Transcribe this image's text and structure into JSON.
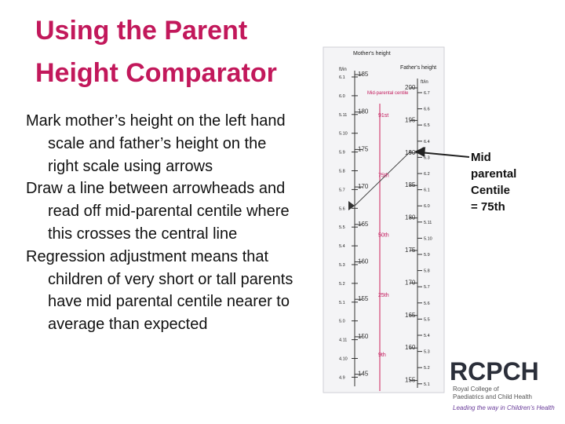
{
  "title": [
    "Using the Parent",
    "Height Comparator"
  ],
  "bullets": [
    "Mark mother’s height on the left hand scale and father’s height on the right scale using arrows",
    "Draw a line between arrowheads and read off mid-parental centile where this crosses the central line",
    "Regression adjustment means that children of very short or tall parents have mid parental centile nearer to average than expected"
  ],
  "comparator": {
    "mother_header": "Mother's height",
    "father_header": "Father's height",
    "mother_unit": "ft/in",
    "father_unit": "ft/in",
    "centile_header": "Mid-parental centile",
    "mother_ftin": [
      "6.1",
      "6.0",
      "5.11",
      "5.10",
      "5.9",
      "5.8",
      "5.7",
      "5.6",
      "5.5",
      "5.4",
      "5.3",
      "5.2",
      "5.1",
      "5.0",
      "4.11",
      "4.10",
      "4.9"
    ],
    "mother_cm": [
      "185",
      "180",
      "175",
      "170",
      "165",
      "160",
      "155",
      "150",
      "145"
    ],
    "father_cm": [
      "200",
      "195",
      "190",
      "185",
      "180",
      "175",
      "170",
      "165",
      "160",
      "155"
    ],
    "father_ftin": [
      "6.7",
      "6.6",
      "6.5",
      "6.4",
      "6.3",
      "6.2",
      "6.1",
      "6.0",
      "5.11",
      "5.10",
      "5.9",
      "5.8",
      "5.7",
      "5.6",
      "5.5",
      "5.4",
      "5.3",
      "5.2",
      "5.1"
    ],
    "centiles": [
      "91st",
      "75th",
      "50th",
      "25th",
      "9th"
    ]
  },
  "callout": [
    "Mid",
    "parental",
    "Centile",
    "= 75th"
  ],
  "logo": {
    "name": "RCPCH",
    "line1": "Royal College of",
    "line2": "Paediatrics and Child Health",
    "tagline": "Leading the way in Children’s Health"
  }
}
